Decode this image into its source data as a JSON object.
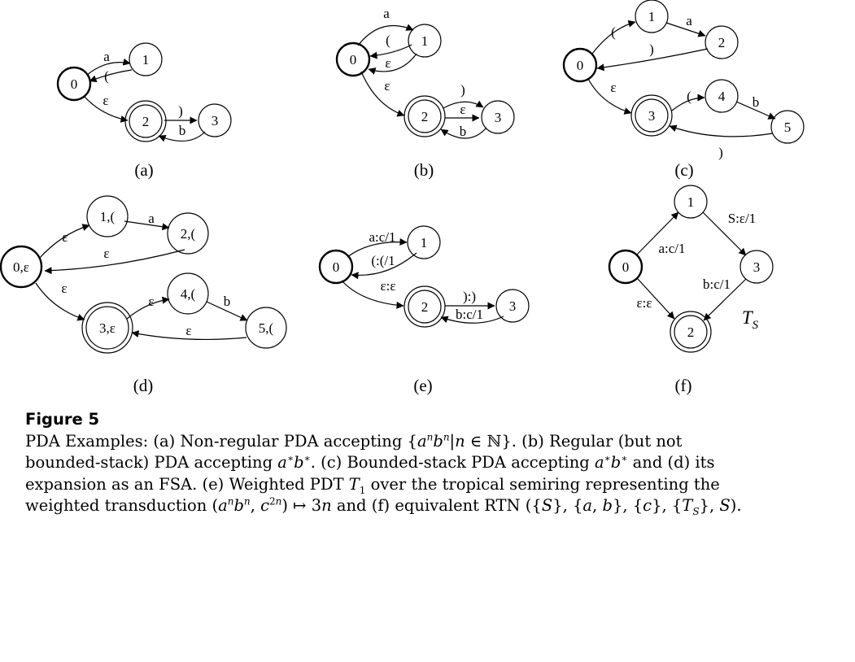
{
  "figure_title": "Figure 5",
  "caption": {
    "line1_a": "PDA Examples: (a) Non-regular PDA accepting {",
    "line1_b": "}. (b) Regular (but not",
    "line2_a": "bounded-stack) PDA accepting ",
    "line2_b": ". (c) Bounded-stack PDA accepting ",
    "line2_c": " and (d) its",
    "line3": "expansion as an FSA. (e) Weighted PDT ",
    "line3_b": " over the tropical semiring representing the",
    "line4_a": "weighted transduction (",
    "line4_b": ") ↦ 3",
    "line4_c": " and (f) equivalent RTN ({",
    "line4_d": "}, {",
    "line4_e": "}, {",
    "line4_f": "}, {",
    "line4_g": "}, ",
    "line4_h": ")."
  },
  "panels": [
    {
      "label": "(a)",
      "states": [
        {
          "id": "0",
          "label": "0",
          "initial": true,
          "final": false
        },
        {
          "id": "1",
          "label": "1",
          "initial": false,
          "final": false
        },
        {
          "id": "2",
          "label": "2",
          "initial": false,
          "final": true
        },
        {
          "id": "3",
          "label": "3",
          "initial": false,
          "final": false
        }
      ],
      "arcs": [
        {
          "from": "0",
          "to": "1",
          "label": "a"
        },
        {
          "from": "1",
          "to": "0",
          "label": "("
        },
        {
          "from": "0",
          "to": "2",
          "label": "ε"
        },
        {
          "from": "2",
          "to": "3",
          "label": ")"
        },
        {
          "from": "3",
          "to": "2",
          "label": "b"
        }
      ]
    },
    {
      "label": "(b)",
      "states": [
        {
          "id": "0",
          "label": "0",
          "initial": true,
          "final": false
        },
        {
          "id": "1",
          "label": "1",
          "initial": false,
          "final": false
        },
        {
          "id": "2",
          "label": "2",
          "initial": false,
          "final": true
        },
        {
          "id": "3",
          "label": "3",
          "initial": false,
          "final": false
        }
      ],
      "arcs": [
        {
          "from": "0",
          "to": "1",
          "label": "a"
        },
        {
          "from": "1",
          "to": "0",
          "label": "("
        },
        {
          "from": "1",
          "to": "0",
          "label": "ε"
        },
        {
          "from": "0",
          "to": "2",
          "label": "ε"
        },
        {
          "from": "2",
          "to": "3",
          "label": ")"
        },
        {
          "from": "2",
          "to": "3",
          "label": "ε"
        },
        {
          "from": "3",
          "to": "2",
          "label": "b"
        }
      ]
    },
    {
      "label": "(c)",
      "states": [
        {
          "id": "0",
          "label": "0",
          "initial": true,
          "final": false
        },
        {
          "id": "1",
          "label": "1",
          "initial": false,
          "final": false
        },
        {
          "id": "2",
          "label": "2",
          "initial": false,
          "final": false
        },
        {
          "id": "3",
          "label": "3",
          "initial": false,
          "final": true
        },
        {
          "id": "4",
          "label": "4",
          "initial": false,
          "final": false
        },
        {
          "id": "5",
          "label": "5",
          "initial": false,
          "final": false
        }
      ],
      "arcs": [
        {
          "from": "0",
          "to": "1",
          "label": "("
        },
        {
          "from": "1",
          "to": "2",
          "label": "a"
        },
        {
          "from": "2",
          "to": "0",
          "label": ")"
        },
        {
          "from": "0",
          "to": "3",
          "label": "ε"
        },
        {
          "from": "3",
          "to": "4",
          "label": "("
        },
        {
          "from": "4",
          "to": "5",
          "label": "b"
        },
        {
          "from": "5",
          "to": "3",
          "label": ")"
        }
      ]
    },
    {
      "label": "(d)",
      "states": [
        {
          "id": "0",
          "label": "0,ε",
          "initial": true,
          "final": false
        },
        {
          "id": "1",
          "label": "1,(",
          "initial": false,
          "final": false
        },
        {
          "id": "2",
          "label": "2,(",
          "initial": false,
          "final": false
        },
        {
          "id": "3",
          "label": "3,ε",
          "initial": false,
          "final": true
        },
        {
          "id": "4",
          "label": "4,(",
          "initial": false,
          "final": false
        },
        {
          "id": "5",
          "label": "5,(",
          "initial": false,
          "final": false
        }
      ],
      "arcs": [
        {
          "from": "0",
          "to": "1",
          "label": "ε"
        },
        {
          "from": "1",
          "to": "2",
          "label": "a"
        },
        {
          "from": "2",
          "to": "0",
          "label": "ε"
        },
        {
          "from": "0",
          "to": "3",
          "label": "ε"
        },
        {
          "from": "3",
          "to": "4",
          "label": "ε"
        },
        {
          "from": "4",
          "to": "5",
          "label": "b"
        },
        {
          "from": "5",
          "to": "3",
          "label": "ε"
        }
      ]
    },
    {
      "label": "(e)",
      "states": [
        {
          "id": "0",
          "label": "0",
          "initial": true,
          "final": false
        },
        {
          "id": "1",
          "label": "1",
          "initial": false,
          "final": false
        },
        {
          "id": "2",
          "label": "2",
          "initial": false,
          "final": true
        },
        {
          "id": "3",
          "label": "3",
          "initial": false,
          "final": false
        }
      ],
      "arcs": [
        {
          "from": "0",
          "to": "1",
          "label": "a:c/1"
        },
        {
          "from": "1",
          "to": "0",
          "label": "(:(/1"
        },
        {
          "from": "0",
          "to": "2",
          "label": "ε:ε"
        },
        {
          "from": "2",
          "to": "3",
          "label": "):)"
        },
        {
          "from": "3",
          "to": "2",
          "label": "b:c/1"
        }
      ]
    },
    {
      "label": "(f)",
      "states": [
        {
          "id": "0",
          "label": "0",
          "initial": true,
          "final": false
        },
        {
          "id": "1",
          "label": "1",
          "initial": false,
          "final": false
        },
        {
          "id": "2",
          "label": "2",
          "initial": false,
          "final": true
        },
        {
          "id": "3",
          "label": "3",
          "initial": false,
          "final": false
        }
      ],
      "arcs": [
        {
          "from": "0",
          "to": "1",
          "label": "a:c/1"
        },
        {
          "from": "1",
          "to": "3",
          "label": "S:ε/1"
        },
        {
          "from": "3",
          "to": "2",
          "label": "b:c/1"
        },
        {
          "from": "0",
          "to": "2",
          "label": "ε:ε"
        }
      ],
      "annotation": "T",
      "annotation_sub": "S"
    }
  ]
}
